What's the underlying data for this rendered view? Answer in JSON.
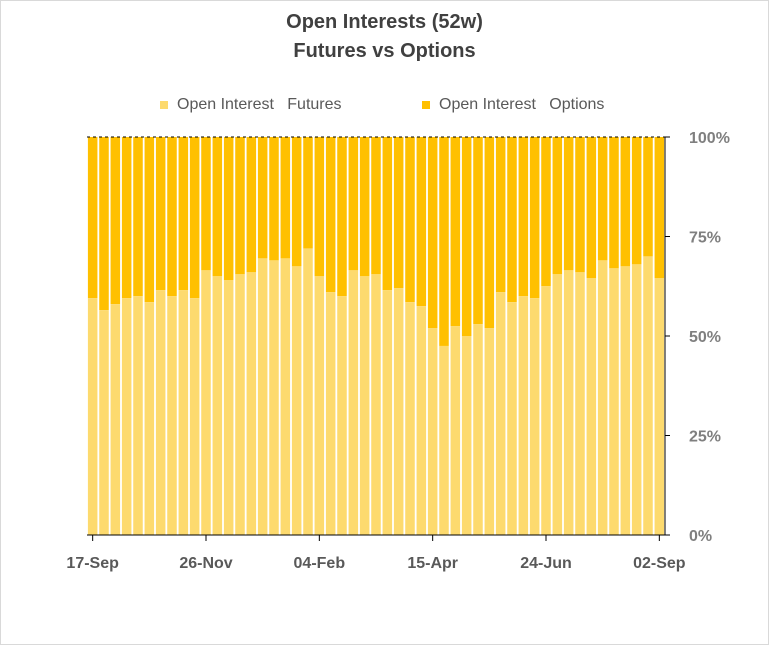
{
  "title_line1": "Open Interests (52w)",
  "title_line2": "Futures vs Options",
  "colors": {
    "futures": "#FDDA6E",
    "options": "#FFC000",
    "axis": "#000000",
    "text": "#595959"
  },
  "chart_data": {
    "type": "bar",
    "stacked": "percent",
    "title": "Open Interests (52w) Futures vs Options",
    "x_tick_labels": [
      "17-Sep",
      "26-Nov",
      "04-Feb",
      "15-Apr",
      "24-Jun",
      "02-Sep"
    ],
    "x_tick_indices": [
      0,
      10,
      20,
      30,
      40,
      50
    ],
    "y_tick_labels": [
      "0%",
      "25%",
      "50%",
      "75%",
      "100%"
    ],
    "ylim": [
      0,
      100
    ],
    "y_axis_position": "right",
    "grid": false,
    "legend": "top",
    "series": [
      {
        "name": "Open Interest   Futures",
        "values": [
          59.5,
          56.5,
          58,
          59.5,
          60,
          58.5,
          61.5,
          60,
          61.5,
          59.5,
          66.5,
          65,
          64,
          65.5,
          66,
          69.5,
          69,
          69.5,
          67.5,
          72,
          65,
          61,
          60,
          66.5,
          65,
          65.5,
          61.5,
          62,
          58.5,
          57.5,
          52,
          47.5,
          52.5,
          50,
          53,
          52,
          61,
          58.5,
          60,
          59.5,
          62.5,
          65.5,
          66.5,
          66,
          64.5,
          69,
          67,
          67.5,
          68,
          70,
          64.5
        ]
      },
      {
        "name": "Open Interest   Options",
        "values": [
          40.5,
          43.5,
          42,
          40.5,
          40,
          41.5,
          38.5,
          40,
          38.5,
          40.5,
          33.5,
          35,
          36,
          34.5,
          34,
          30.5,
          31,
          30.5,
          32.5,
          28,
          35,
          39,
          40,
          33.5,
          35,
          34.5,
          38.5,
          38,
          41.5,
          42.5,
          48,
          52.5,
          47.5,
          50,
          47,
          48,
          39,
          41.5,
          40,
          40.5,
          37.5,
          34.5,
          33.5,
          34,
          35.5,
          31,
          33,
          32.5,
          32,
          30,
          35.5
        ]
      }
    ]
  }
}
